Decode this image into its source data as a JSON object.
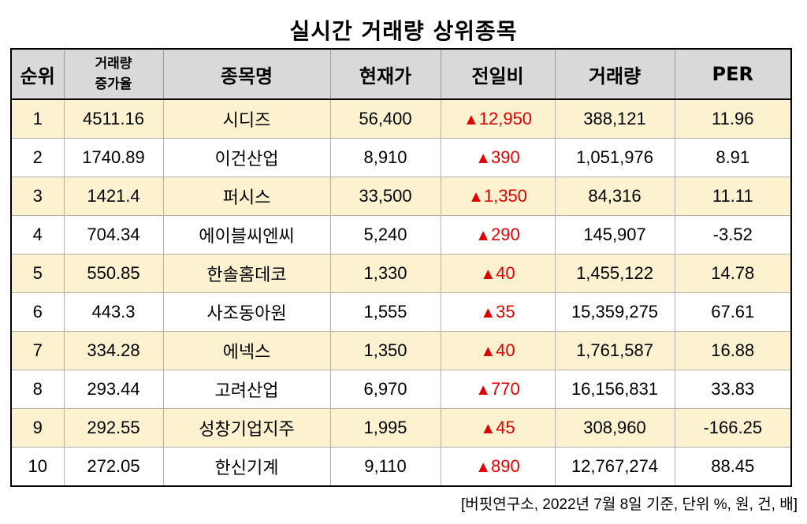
{
  "title": "실시간 거래량 상위종목",
  "headers": {
    "rank": "순위",
    "growth_line1": "거래량",
    "growth_line2": "증가율",
    "name": "종목명",
    "price": "현재가",
    "change": "전일비",
    "volume": "거래량",
    "per": "PER"
  },
  "colors": {
    "change_up": "#e00000",
    "odd_row": "#fdf2d0",
    "header_bg": "#d9d9d9"
  },
  "rows": [
    {
      "rank": "1",
      "growth": "4511.16",
      "name": "시디즈",
      "price": "56,400",
      "arrow": "▲",
      "change": "12,950",
      "volume": "388,121",
      "per": "11.96"
    },
    {
      "rank": "2",
      "growth": "1740.89",
      "name": "이건산업",
      "price": "8,910",
      "arrow": "▲",
      "change": "390",
      "volume": "1,051,976",
      "per": "8.91"
    },
    {
      "rank": "3",
      "growth": "1421.4",
      "name": "퍼시스",
      "price": "33,500",
      "arrow": "▲",
      "change": "1,350",
      "volume": "84,316",
      "per": "11.11"
    },
    {
      "rank": "4",
      "growth": "704.34",
      "name": "에이블씨엔씨",
      "price": "5,240",
      "arrow": "▲",
      "change": "290",
      "volume": "145,907",
      "per": "-3.52"
    },
    {
      "rank": "5",
      "growth": "550.85",
      "name": "한솔홈데코",
      "price": "1,330",
      "arrow": "▲",
      "change": "40",
      "volume": "1,455,122",
      "per": "14.78"
    },
    {
      "rank": "6",
      "growth": "443.3",
      "name": "사조동아원",
      "price": "1,555",
      "arrow": "▲",
      "change": "35",
      "volume": "15,359,275",
      "per": "67.61"
    },
    {
      "rank": "7",
      "growth": "334.28",
      "name": "에넥스",
      "price": "1,350",
      "arrow": "▲",
      "change": "40",
      "volume": "1,761,587",
      "per": "16.88"
    },
    {
      "rank": "8",
      "growth": "293.44",
      "name": "고려산업",
      "price": "6,970",
      "arrow": "▲",
      "change": "770",
      "volume": "16,156,831",
      "per": "33.83"
    },
    {
      "rank": "9",
      "growth": "292.55",
      "name": "성창기업지주",
      "price": "1,995",
      "arrow": "▲",
      "change": "45",
      "volume": "308,960",
      "per": "-166.25"
    },
    {
      "rank": "10",
      "growth": "272.05",
      "name": "한신기계",
      "price": "9,110",
      "arrow": "▲",
      "change": "890",
      "volume": "12,767,274",
      "per": "88.45"
    }
  ],
  "source_note": "[버핏연구소, 2022년 7월 8일 기준, 단위 %, 원, 건, 배]"
}
